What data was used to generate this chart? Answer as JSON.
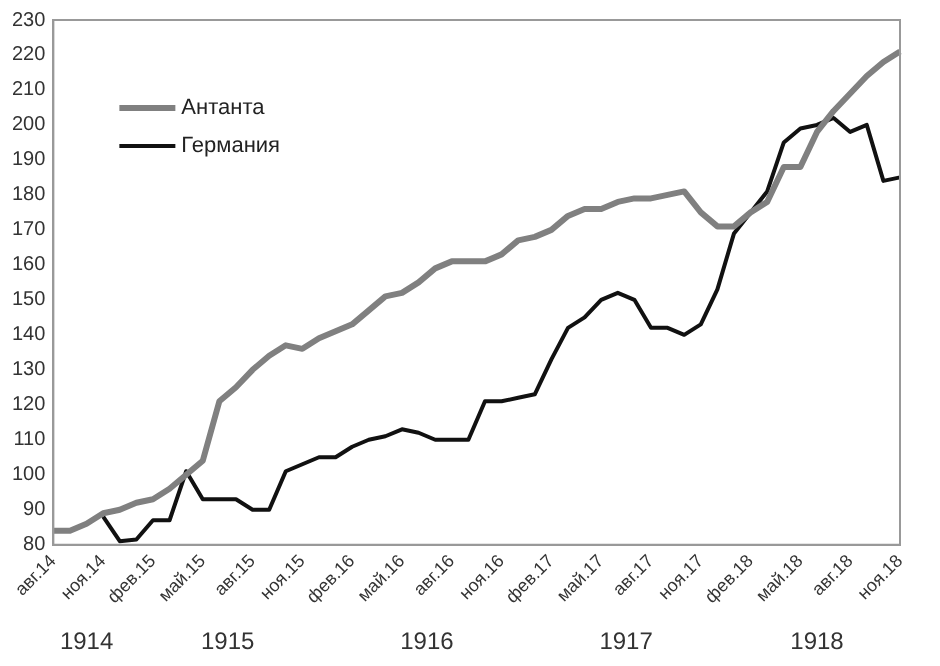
{
  "chart_data": {
    "type": "line",
    "categories": [
      "авг.14",
      null,
      null,
      "ноя.14",
      null,
      null,
      "фев.15",
      null,
      null,
      "май.15",
      null,
      null,
      "авг.15",
      null,
      null,
      "ноя.15",
      null,
      null,
      "фев.16",
      null,
      null,
      "май.16",
      null,
      null,
      "авг.16",
      null,
      null,
      "ноя.16",
      null,
      null,
      "фев.17",
      null,
      null,
      "май.17",
      null,
      null,
      "авг.17",
      null,
      null,
      "ноя.17",
      null,
      null,
      "фев.18",
      null,
      null,
      "май.18",
      null,
      null,
      "авг.18",
      null,
      null,
      "ноя.18"
    ],
    "series": [
      {
        "name": "Антанта",
        "color": "#808080",
        "values": [
          84,
          84,
          86,
          89,
          90,
          92,
          93,
          96,
          100,
          104,
          121,
          125,
          130,
          134,
          137,
          136,
          139,
          141,
          143,
          147,
          151,
          152,
          155,
          159,
          161,
          161,
          161,
          163,
          167,
          168,
          170,
          174,
          176,
          176,
          178,
          179,
          179,
          180,
          181,
          175,
          171,
          171,
          175,
          178,
          188,
          188,
          198,
          204,
          209,
          214,
          218,
          221
        ]
      },
      {
        "name": "Германия",
        "color": "#111111",
        "values": [
          null,
          null,
          null,
          88,
          81,
          81.5,
          87,
          87,
          101,
          93,
          93,
          93,
          90,
          90,
          101,
          103,
          105,
          105,
          108,
          110,
          111,
          113,
          112,
          110,
          110,
          110,
          121,
          121,
          122,
          123,
          133,
          142,
          145,
          150,
          152,
          150,
          142,
          142,
          140,
          143,
          153,
          169,
          175,
          181,
          195,
          199,
          200,
          202,
          198,
          200,
          184,
          185
        ]
      }
    ],
    "ylim": [
      80,
      230
    ],
    "yticks": [
      80,
      90,
      100,
      110,
      120,
      130,
      140,
      150,
      160,
      170,
      180,
      190,
      200,
      210,
      220,
      230
    ],
    "grid": false,
    "legend": "top left",
    "marker": "none",
    "line_style": "solid",
    "annotations": [
      "1914",
      "1915",
      "1916",
      "1917",
      "1918"
    ]
  }
}
